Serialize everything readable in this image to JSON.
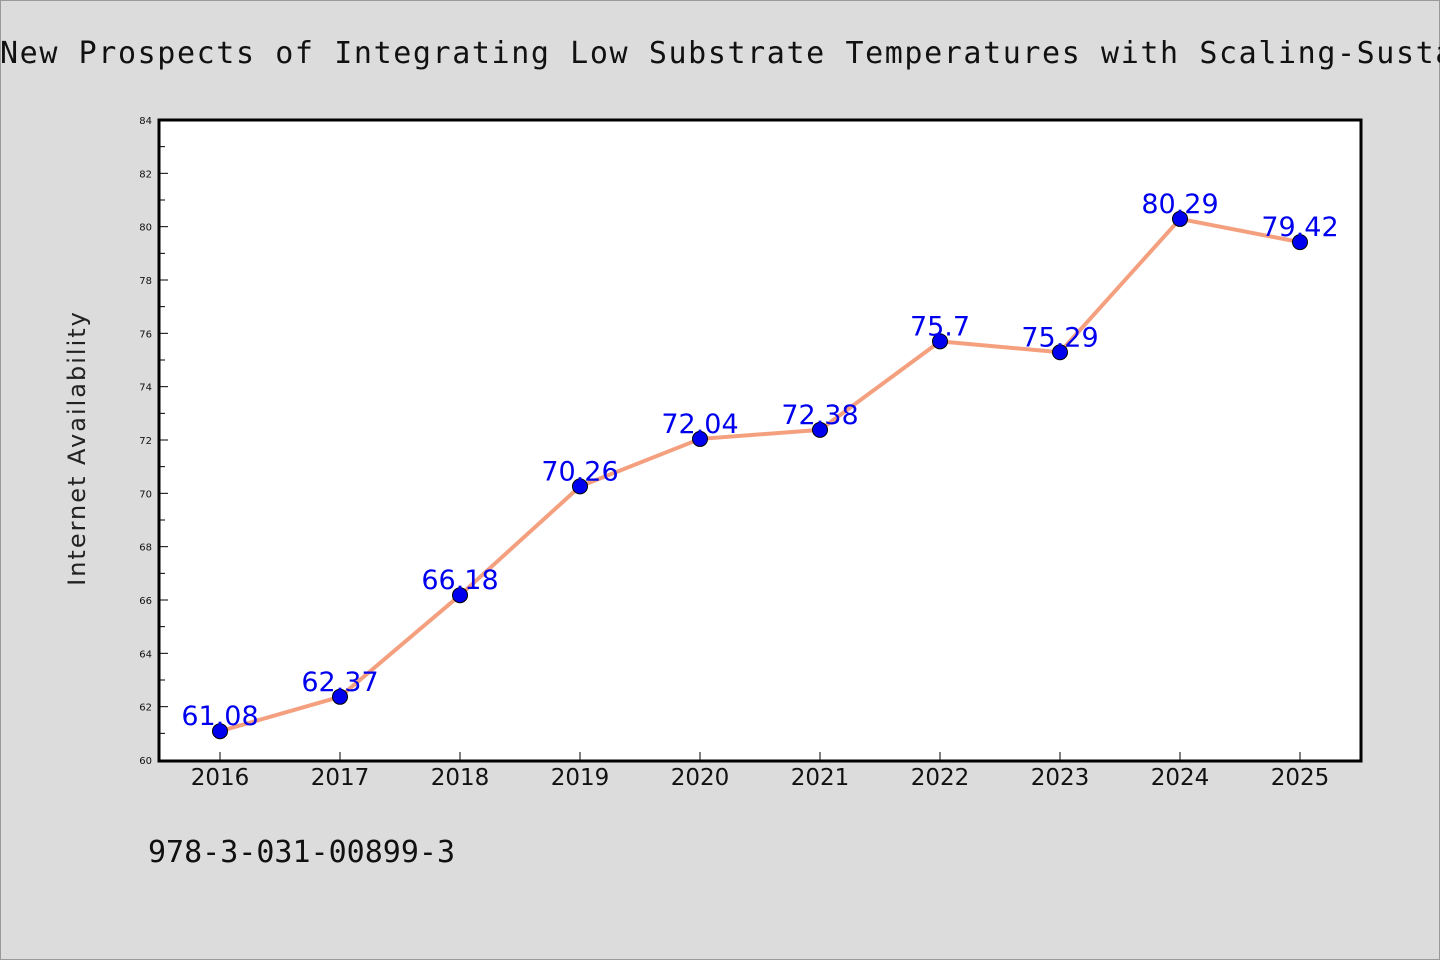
{
  "chart_data": {
    "type": "line",
    "title": "New Prospects of Integrating Low Substrate Temperatures with Scaling-Sustained D",
    "xlabel": "",
    "ylabel": "Internet Availability",
    "categories": [
      "2016",
      "2017",
      "2018",
      "2019",
      "2020",
      "2021",
      "2022",
      "2023",
      "2024",
      "2025"
    ],
    "series": [
      {
        "values": [
          61.08,
          62.37,
          66.18,
          70.26,
          72.04,
          72.38,
          75.7,
          75.29,
          80.29,
          79.42
        ],
        "data_labels": [
          "61.08",
          "62.37",
          "66.18",
          "70.26",
          "72.04",
          "72.38",
          "75.7",
          "75.29",
          "80.29",
          "79.42"
        ],
        "line_color": "#f4a07f",
        "marker_color": "#0000ee",
        "label_color": "#0000ee"
      }
    ],
    "ylim": [
      60,
      84
    ],
    "yticks": [
      "60",
      "62",
      "64",
      "66",
      "68",
      "70",
      "72",
      "74",
      "76",
      "78",
      "80",
      "82",
      "84"
    ],
    "grid": false,
    "legend": "none"
  },
  "footer": {
    "isbn": "978-3-031-00899-3"
  },
  "colors": {
    "background": "#dcdcdc",
    "plot_background": "#ffffff",
    "axis": "#000000"
  }
}
